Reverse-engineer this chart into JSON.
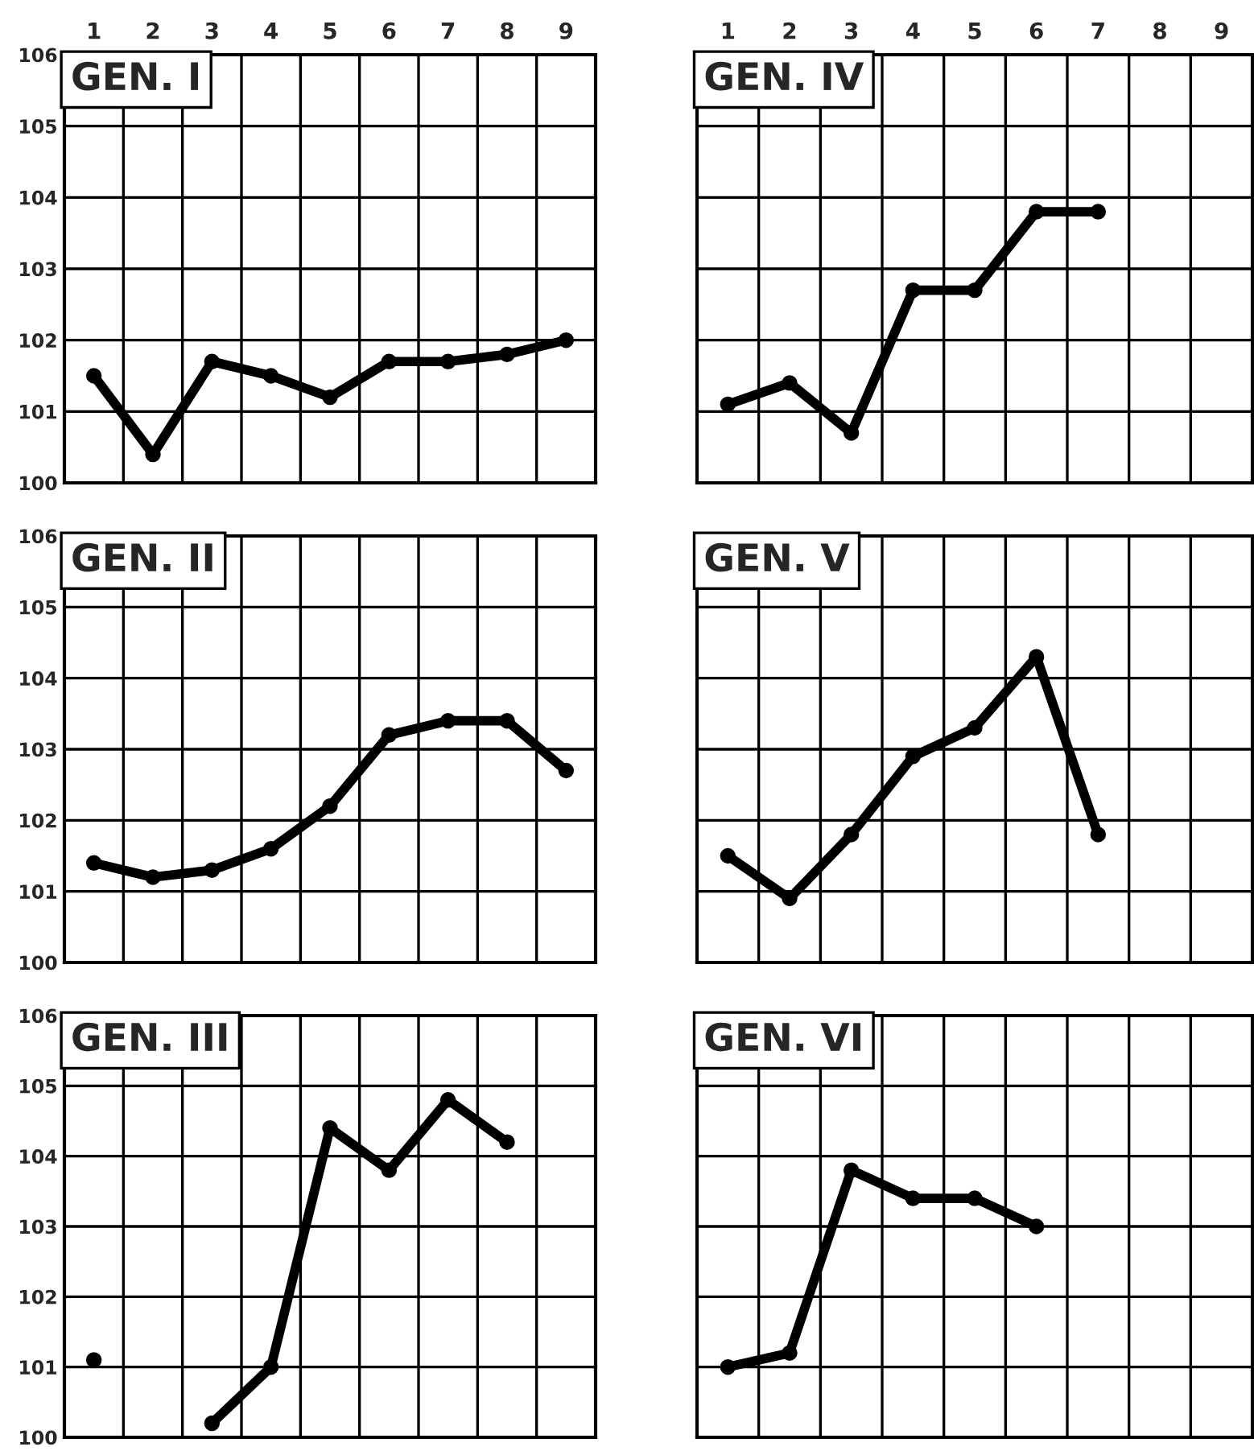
{
  "chart_data": [
    {
      "type": "line",
      "title": "GEN. I",
      "categories": [
        "1",
        "2",
        "3",
        "4",
        "5",
        "6",
        "7",
        "8",
        "9"
      ],
      "values": [
        101.5,
        100.4,
        101.7,
        101.5,
        101.2,
        101.7,
        101.7,
        101.8,
        102.0
      ],
      "color": "#000000",
      "ylim": [
        100,
        106
      ],
      "yticks": [
        100,
        101,
        102,
        103,
        104,
        105,
        106
      ],
      "grid": true,
      "marker": "circle"
    },
    {
      "type": "line",
      "title": "GEN. IV",
      "categories": [
        "1",
        "2",
        "3",
        "4",
        "5",
        "6",
        "7",
        "8",
        "9"
      ],
      "values": [
        101.1,
        101.4,
        100.7,
        102.7,
        102.7,
        103.8,
        103.8,
        null,
        null
      ],
      "color": "#000000",
      "ylim": [
        100,
        106
      ],
      "yticks": [
        100,
        101,
        102,
        103,
        104,
        105,
        106
      ],
      "grid": true,
      "marker": "circle",
      "tick_labels": "x"
    },
    {
      "type": "line",
      "title": "GEN. II",
      "categories": [
        "1",
        "2",
        "3",
        "4",
        "5",
        "6",
        "7",
        "8",
        "9"
      ],
      "values": [
        101.4,
        101.2,
        101.3,
        101.6,
        102.2,
        103.2,
        103.4,
        103.4,
        102.7
      ],
      "color": "#000000",
      "ylim": [
        100,
        106
      ],
      "yticks": [
        100,
        101,
        102,
        103,
        104,
        105,
        106
      ],
      "grid": true,
      "marker": "circle",
      "tick_labels": "y"
    },
    {
      "type": "line",
      "title": "GEN. V",
      "categories": [
        "1",
        "2",
        "3",
        "4",
        "5",
        "6",
        "7",
        "8",
        "9"
      ],
      "values": [
        101.5,
        100.9,
        101.8,
        102.9,
        103.3,
        104.3,
        101.8,
        null,
        null
      ],
      "color": "#000000",
      "ylim": [
        100,
        106
      ],
      "yticks": [
        100,
        101,
        102,
        103,
        104,
        105,
        106
      ],
      "grid": true,
      "marker": "circle",
      "tick_labels": false
    },
    {
      "type": "line",
      "title": "GEN. III",
      "categories": [
        "1",
        "2",
        "3",
        "4",
        "5",
        "6",
        "7",
        "8",
        "9"
      ],
      "values": [
        101.1,
        null,
        100.2,
        101.0,
        104.4,
        103.8,
        104.8,
        104.2,
        null
      ],
      "color": "#000000",
      "ylim": [
        100,
        106
      ],
      "yticks": [
        100,
        101,
        102,
        103,
        104,
        105,
        106
      ],
      "grid": true,
      "marker": "circle",
      "tick_labels": "y"
    },
    {
      "type": "line",
      "title": "GEN. VI",
      "categories": [
        "1",
        "2",
        "3",
        "4",
        "5",
        "6",
        "7",
        "8",
        "9"
      ],
      "values": [
        101.0,
        101.2,
        103.8,
        103.4,
        103.4,
        103.0,
        null,
        null,
        null
      ],
      "color": "#000000",
      "ylim": [
        100,
        106
      ],
      "yticks": [
        100,
        101,
        102,
        103,
        104,
        105,
        106
      ],
      "grid": true,
      "marker": "circle",
      "tick_labels": false
    }
  ]
}
